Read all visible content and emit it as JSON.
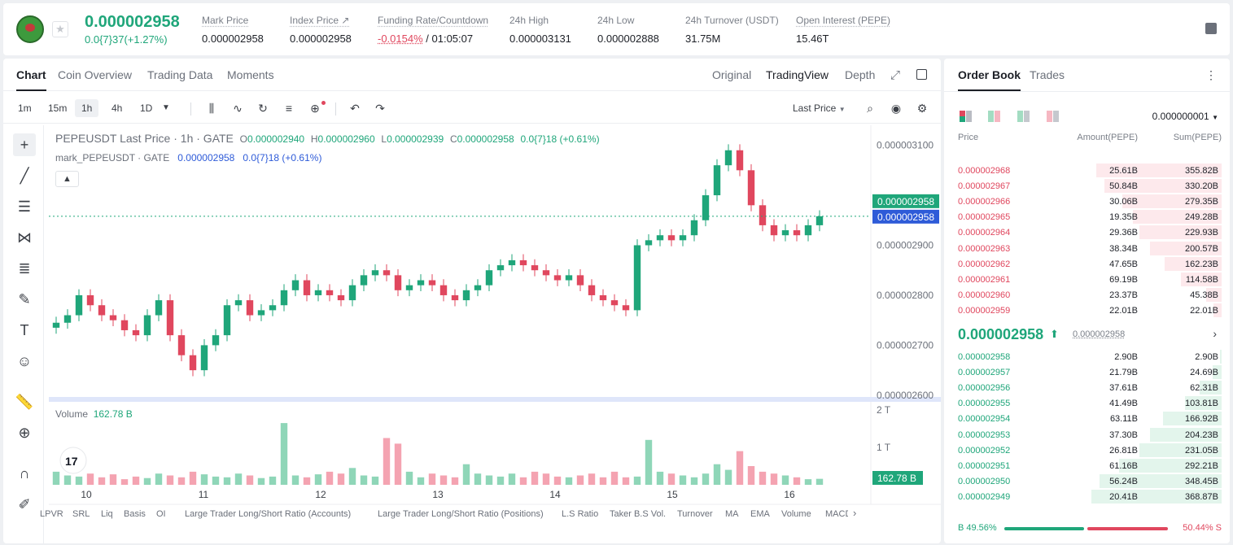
{
  "header": {
    "last_price": "0.000002958",
    "last_change": "0.0{7}37(+1.27%)",
    "stats": [
      {
        "label": "Mark Price",
        "value": "0.000002958"
      },
      {
        "label": "Index Price ↗",
        "value": "0.000002958"
      },
      {
        "label": "Funding Rate/Countdown",
        "value_neg": "-0.0154%",
        "value": "/ 01:05:07"
      },
      {
        "label": "24h High",
        "value": "0.000003131"
      },
      {
        "label": "24h Low",
        "value": "0.000002888"
      },
      {
        "label": "24h Turnover (USDT)",
        "value": "31.75M"
      },
      {
        "label": "Open Interest (PEPE)",
        "value": "15.46T"
      }
    ]
  },
  "chart_tabs": [
    "Chart",
    "Coin Overview",
    "Trading Data",
    "Moments"
  ],
  "view_options": [
    "Original",
    "TradingView",
    "Depth"
  ],
  "timeframes": [
    "1m",
    "15m",
    "1h",
    "4h",
    "1D"
  ],
  "price_type": "Last Price",
  "legend": {
    "symbol": "PEPEUSDT Last Price · 1h · GATE",
    "o": "0.000002940",
    "h": "0.000002960",
    "l": "0.000002939",
    "c": "0.000002958",
    "change": "0.0{7}18 (+0.61%)",
    "mark_name": "mark_PEPEUSDT · GATE",
    "mark_value": "0.000002958",
    "mark_change": "0.0{7}18 (+0.61%)",
    "ol": "O",
    "hl": "H",
    "ll": "L",
    "cl": "C"
  },
  "volume_legend": {
    "label": "Volume",
    "value": "162.78 B"
  },
  "chart_data": {
    "type": "candlestick",
    "y_ticks": [
      "0.000003100",
      "0.000002900",
      "0.000002800",
      "0.000002700",
      "0.000002600"
    ],
    "last_price_tag": "0.000002958",
    "mark_price_tag": "0.000002958",
    "x_ticks": [
      "10",
      "11",
      "12",
      "13",
      "14",
      "15",
      "16"
    ],
    "volume_ticks": [
      "2 T",
      "1 T"
    ],
    "volume_tag": "162.78 B",
    "ylim": [
      2.59e-06,
      3.14e-06
    ],
    "close_series": [
      2.745,
      2.76,
      2.8,
      2.78,
      2.76,
      2.75,
      2.73,
      2.72,
      2.76,
      2.79,
      2.72,
      2.68,
      2.65,
      2.7,
      2.72,
      2.78,
      2.79,
      2.76,
      2.77,
      2.78,
      2.81,
      2.83,
      2.8,
      2.81,
      2.8,
      2.79,
      2.82,
      2.84,
      2.85,
      2.84,
      2.81,
      2.82,
      2.83,
      2.82,
      2.8,
      2.79,
      2.81,
      2.82,
      2.85,
      2.86,
      2.87,
      2.86,
      2.85,
      2.84,
      2.83,
      2.84,
      2.82,
      2.8,
      2.79,
      2.78,
      2.77,
      2.9,
      2.91,
      2.92,
      2.91,
      2.92,
      2.95,
      3.0,
      3.06,
      3.09,
      3.05,
      2.98,
      2.94,
      2.92,
      2.93,
      2.92,
      2.94,
      2.958
    ],
    "volume_series": [
      0.35,
      0.25,
      0.22,
      0.3,
      0.2,
      0.28,
      0.15,
      0.22,
      0.18,
      0.3,
      0.25,
      0.2,
      0.35,
      0.28,
      0.22,
      0.2,
      0.3,
      0.25,
      0.18,
      0.22,
      1.65,
      0.25,
      0.2,
      0.28,
      0.35,
      0.3,
      0.45,
      0.25,
      0.22,
      1.25,
      1.1,
      0.35,
      0.2,
      0.3,
      0.25,
      0.2,
      0.55,
      0.3,
      0.25,
      0.22,
      0.3,
      0.2,
      0.35,
      0.3,
      0.22,
      0.2,
      0.25,
      0.3,
      0.2,
      0.35,
      0.2,
      0.22,
      1.2,
      0.35,
      0.3,
      0.25,
      0.2,
      0.3,
      0.55,
      0.4,
      0.9,
      0.5,
      0.35,
      0.3,
      0.25,
      0.2,
      0.15,
      0.16
    ]
  },
  "bottom_indicators": [
    "LPVR",
    "SRL",
    "Liq",
    "Basis",
    "OI",
    "Large Trader Long/Short Ratio (Accounts)",
    "Large Trader Long/Short Ratio (Positions)",
    "L.S Ratio",
    "Taker B.S Vol.",
    "Turnover",
    "MA",
    "EMA",
    "Volume",
    "MACD"
  ],
  "orderbook": {
    "tabs": [
      "Order Book",
      "Trades"
    ],
    "precision": "0.000000001",
    "col_price": "Price",
    "col_amount": "Amount(PEPE)",
    "col_sum": "Sum(PEPE)",
    "asks": [
      {
        "price": "0.000002968",
        "amount": "25.61B",
        "sum": "355.82B",
        "depth": 0.96
      },
      {
        "price": "0.000002967",
        "amount": "50.84B",
        "sum": "330.20B",
        "depth": 0.9
      },
      {
        "price": "0.000002966",
        "amount": "30.06B",
        "sum": "279.35B",
        "depth": 0.76
      },
      {
        "price": "0.000002965",
        "amount": "19.35B",
        "sum": "249.28B",
        "depth": 0.68
      },
      {
        "price": "0.000002964",
        "amount": "29.36B",
        "sum": "229.93B",
        "depth": 0.63
      },
      {
        "price": "0.000002963",
        "amount": "38.34B",
        "sum": "200.57B",
        "depth": 0.55
      },
      {
        "price": "0.000002962",
        "amount": "47.65B",
        "sum": "162.23B",
        "depth": 0.44
      },
      {
        "price": "0.000002961",
        "amount": "69.19B",
        "sum": "114.58B",
        "depth": 0.31
      },
      {
        "price": "0.000002960",
        "amount": "23.37B",
        "sum": "45.38B",
        "depth": 0.12
      },
      {
        "price": "0.000002959",
        "amount": "22.01B",
        "sum": "22.01B",
        "depth": 0.06
      }
    ],
    "mid_price": "0.000002958",
    "mid_mark": "0.000002958",
    "bids": [
      {
        "price": "0.000002958",
        "amount": "2.90B",
        "sum": "2.90B",
        "depth": 0.01
      },
      {
        "price": "0.000002957",
        "amount": "21.79B",
        "sum": "24.69B",
        "depth": 0.07
      },
      {
        "price": "0.000002956",
        "amount": "37.61B",
        "sum": "62.31B",
        "depth": 0.17
      },
      {
        "price": "0.000002955",
        "amount": "41.49B",
        "sum": "103.81B",
        "depth": 0.28
      },
      {
        "price": "0.000002954",
        "amount": "63.11B",
        "sum": "166.92B",
        "depth": 0.45
      },
      {
        "price": "0.000002953",
        "amount": "37.30B",
        "sum": "204.23B",
        "depth": 0.55
      },
      {
        "price": "0.000002952",
        "amount": "26.81B",
        "sum": "231.05B",
        "depth": 0.63
      },
      {
        "price": "0.000002951",
        "amount": "61.16B",
        "sum": "292.21B",
        "depth": 0.79
      },
      {
        "price": "0.000002950",
        "amount": "56.24B",
        "sum": "348.45B",
        "depth": 0.94
      },
      {
        "price": "0.000002949",
        "amount": "20.41B",
        "sum": "368.87B",
        "depth": 1.0
      }
    ],
    "buy_ratio": "B 49.56%",
    "sell_ratio": "50.44% S",
    "buy_fraction": 0.4956
  },
  "colors": {
    "up": "#1fa67a",
    "down": "#e0475e",
    "accent": "#2e5bd8"
  }
}
